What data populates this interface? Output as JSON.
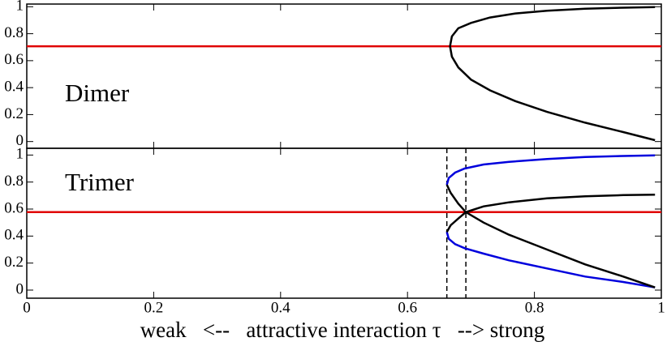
{
  "chart_data": [
    {
      "type": "line",
      "annotation": "Dimer",
      "xlim": [
        0,
        1
      ],
      "ylim": [
        -0.05,
        1.02
      ],
      "yticks": [
        0,
        0.2,
        0.4,
        0.6,
        0.8,
        1
      ],
      "series": [
        {
          "color": "#e00000",
          "x": [
            0,
            1
          ],
          "values": [
            0.707,
            0.707
          ]
        },
        {
          "color": "#000000",
          "x": [
            0.99,
            0.94,
            0.88,
            0.82,
            0.77,
            0.73,
            0.7,
            0.68,
            0.67,
            0.667,
            0.67,
            0.68,
            0.7,
            0.73,
            0.77,
            0.82,
            0.88,
            0.94,
            0.99
          ],
          "values": [
            0.01,
            0.07,
            0.14,
            0.22,
            0.3,
            0.38,
            0.46,
            0.55,
            0.63,
            0.707,
            0.78,
            0.84,
            0.88,
            0.92,
            0.95,
            0.97,
            0.985,
            0.993,
            0.997
          ]
        }
      ]
    },
    {
      "type": "line",
      "annotation": "Trimer",
      "x_label": "weak   <--   attractive interaction τ   --> strong",
      "xlim": [
        0,
        1
      ],
      "ylim": [
        -0.06,
        1.05
      ],
      "xticks": [
        0,
        0.2,
        0.4,
        0.6,
        0.8,
        1
      ],
      "yticks": [
        0,
        0.2,
        0.4,
        0.6,
        0.8,
        1
      ],
      "vlines": [
        0.662,
        0.692
      ],
      "series": [
        {
          "color": "#e00000",
          "x": [
            0,
            1
          ],
          "values": [
            0.577,
            0.577
          ]
        },
        {
          "color": "#0000dd",
          "x": [
            0.662,
            0.665,
            0.675,
            0.69,
            0.72,
            0.76,
            0.82,
            0.88,
            0.94,
            0.99
          ],
          "values": [
            0.78,
            0.83,
            0.87,
            0.9,
            0.93,
            0.95,
            0.97,
            0.985,
            0.993,
            0.997
          ]
        },
        {
          "color": "#0000dd",
          "x": [
            0.662,
            0.665,
            0.675,
            0.69,
            0.72,
            0.76,
            0.82,
            0.88,
            0.94,
            0.99
          ],
          "values": [
            0.43,
            0.38,
            0.34,
            0.31,
            0.27,
            0.22,
            0.16,
            0.1,
            0.06,
            0.02
          ]
        },
        {
          "color": "#000000",
          "x": [
            0.662,
            0.668,
            0.68,
            0.692,
            0.72,
            0.76,
            0.82,
            0.88,
            0.94,
            0.99
          ],
          "values": [
            0.78,
            0.72,
            0.64,
            0.577,
            0.5,
            0.41,
            0.3,
            0.19,
            0.1,
            0.02
          ]
        },
        {
          "color": "#000000",
          "x": [
            0.662,
            0.668,
            0.68,
            0.692,
            0.72,
            0.76,
            0.82,
            0.88,
            0.94,
            0.99
          ],
          "values": [
            0.43,
            0.48,
            0.53,
            0.577,
            0.62,
            0.65,
            0.68,
            0.695,
            0.703,
            0.707
          ]
        }
      ]
    }
  ]
}
